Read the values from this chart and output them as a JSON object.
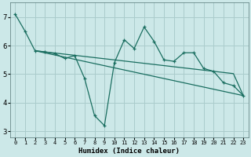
{
  "xlabel": "Humidex (Indice chaleur)",
  "bg_color": "#cce8e8",
  "grid_color": "#aacccc",
  "line_color": "#1a6e60",
  "xlim": [
    -0.5,
    23.5
  ],
  "ylim": [
    2.8,
    7.5
  ],
  "xticks": [
    0,
    1,
    2,
    3,
    4,
    5,
    6,
    7,
    8,
    9,
    10,
    11,
    12,
    13,
    14,
    15,
    16,
    17,
    18,
    19,
    20,
    21,
    22,
    23
  ],
  "yticks": [
    3,
    4,
    5,
    6,
    7
  ],
  "series1_x": [
    0,
    1,
    2,
    3,
    4,
    5,
    6,
    7,
    8,
    9,
    10,
    11,
    12,
    13,
    14,
    15,
    16,
    17,
    18,
    19,
    20,
    21,
    22,
    23
  ],
  "series1_y": [
    7.1,
    6.5,
    5.82,
    5.78,
    5.72,
    5.55,
    5.65,
    4.85,
    3.55,
    3.2,
    5.4,
    6.2,
    5.9,
    6.65,
    6.15,
    5.5,
    5.45,
    5.75,
    5.75,
    5.2,
    5.1,
    4.7,
    4.6,
    4.25
  ],
  "series2_x": [
    2,
    3,
    4,
    5,
    6,
    7,
    8,
    9,
    10,
    11,
    12,
    13,
    14,
    15,
    16,
    17,
    18,
    19,
    20,
    21,
    22,
    23
  ],
  "series2_y": [
    5.82,
    5.78,
    5.74,
    5.7,
    5.66,
    5.62,
    5.58,
    5.54,
    5.5,
    5.46,
    5.42,
    5.38,
    5.34,
    5.3,
    5.26,
    5.22,
    5.18,
    5.14,
    5.1,
    5.06,
    5.02,
    4.25
  ],
  "series3_x": [
    2,
    23
  ],
  "series3_y": [
    5.82,
    4.25
  ]
}
